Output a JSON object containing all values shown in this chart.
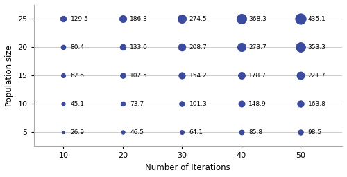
{
  "iterations": [
    10,
    20,
    30,
    40,
    50
  ],
  "populations": [
    5,
    10,
    15,
    20,
    25
  ],
  "values": {
    "5": [
      26.9,
      46.5,
      64.1,
      85.8,
      98.5
    ],
    "10": [
      45.1,
      73.7,
      101.3,
      148.9,
      163.8
    ],
    "15": [
      62.6,
      102.5,
      154.2,
      178.7,
      221.7
    ],
    "20": [
      80.4,
      133.0,
      208.7,
      273.7,
      353.3
    ],
    "25": [
      129.5,
      186.3,
      274.5,
      368.3,
      435.1
    ]
  },
  "dot_color": "#3b4b9f",
  "dot_edge_color": "#2c3a8c",
  "xlabel": "Number of Iterations",
  "ylabel": "Population size",
  "xlim": [
    5,
    57
  ],
  "ylim": [
    2.5,
    27.5
  ],
  "xticks": [
    10,
    20,
    30,
    40,
    50
  ],
  "yticks": [
    5,
    10,
    15,
    20,
    25
  ],
  "grid_color": "#cccccc",
  "background_color": "#ffffff",
  "text_fontsize": 6.5,
  "label_fontsize": 8.5,
  "tick_fontsize": 8
}
